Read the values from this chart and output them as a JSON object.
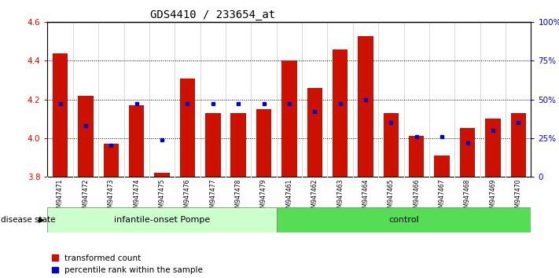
{
  "title": "GDS4410 / 233654_at",
  "samples": [
    "GSM947471",
    "GSM947472",
    "GSM947473",
    "GSM947474",
    "GSM947475",
    "GSM947476",
    "GSM947477",
    "GSM947478",
    "GSM947479",
    "GSM947461",
    "GSM947462",
    "GSM947463",
    "GSM947464",
    "GSM947465",
    "GSM947466",
    "GSM947467",
    "GSM947468",
    "GSM947469",
    "GSM947470"
  ],
  "red_values": [
    4.44,
    4.22,
    3.97,
    4.17,
    3.82,
    4.31,
    4.13,
    4.13,
    4.15,
    4.4,
    4.26,
    4.46,
    4.53,
    4.13,
    4.01,
    3.91,
    4.05,
    4.1,
    4.13
  ],
  "blue_pct": [
    47,
    33,
    20,
    47,
    24,
    47,
    47,
    47,
    47,
    47,
    42,
    47,
    50,
    35,
    26,
    26,
    22,
    30,
    35
  ],
  "group1_label": "infantile-onset Pompe",
  "group2_label": "control",
  "group1_count": 9,
  "group2_count": 10,
  "ylim_left": [
    3.8,
    4.6
  ],
  "ylim_right": [
    0,
    100
  ],
  "yticks_left": [
    3.8,
    4.0,
    4.2,
    4.4,
    4.6
  ],
  "yticks_right": [
    0,
    25,
    50,
    75,
    100
  ],
  "bar_color": "#cc1100",
  "blue_color": "#0000cc",
  "group1_bg": "#ccffcc",
  "group2_bg": "#55dd55",
  "tick_bg": "#cccccc",
  "plot_bg": "#ffffff",
  "disease_state_label": "disease state",
  "legend_red": "transformed count",
  "legend_blue": "percentile rank within the sample",
  "bar_width": 0.6
}
